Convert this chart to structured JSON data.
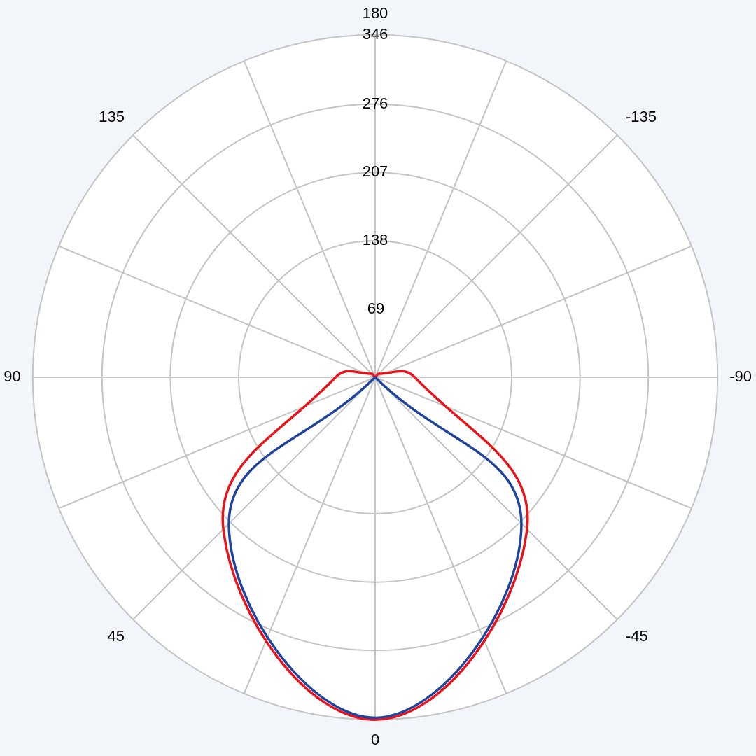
{
  "chart_data": {
    "type": "radar",
    "categories": [
      "180",
      "-135",
      "-90",
      "-45",
      "0",
      "45",
      "90",
      "135"
    ],
    "series": [
      {
        "color": "#1f44a0",
        "values": [
          0,
          0,
          0,
          209,
          344,
          209,
          0,
          0
        ]
      },
      {
        "color": "#e8141c",
        "values": [
          0,
          5,
          40,
          217,
          346,
          217,
          40,
          5
        ]
      }
    ],
    "ylim": [
      0,
      346
    ],
    "yticks": [
      69,
      138,
      207,
      276,
      346
    ],
    "grid": true
  }
}
